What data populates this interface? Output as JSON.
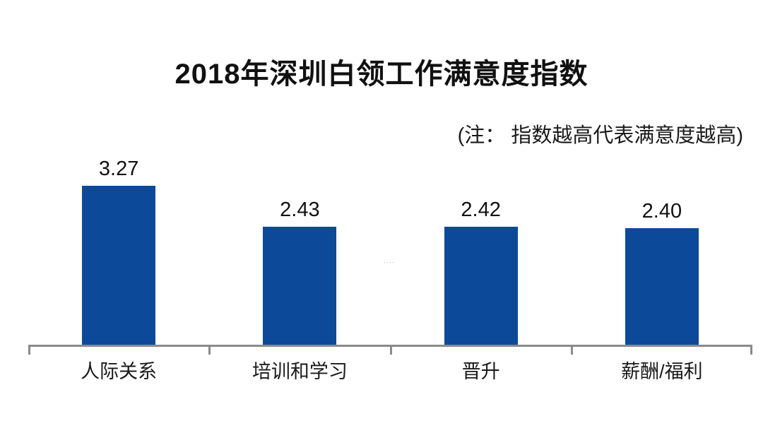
{
  "chart_data": {
    "type": "bar",
    "title": "2018年深圳白领工作满意度指数",
    "note": "(注： 指数越高代表满意度越高)",
    "categories": [
      "人际关系",
      "培训和学习",
      "晋升",
      "薪酬/福利"
    ],
    "values": [
      3.27,
      2.43,
      2.42,
      2.4
    ],
    "value_labels": [
      "3.27",
      "2.43",
      "2.42",
      "2.40"
    ],
    "xlabel": "",
    "ylabel": "",
    "ylim": [
      0,
      3.5
    ],
    "grid": false,
    "legend": "none",
    "bar_color": "#0c4a99",
    "axis_color": "#8a8a8a",
    "watermark": "····"
  }
}
